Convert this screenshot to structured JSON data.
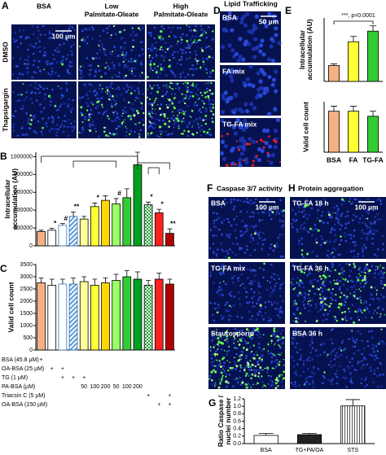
{
  "figure": {
    "panel_a": {
      "letter": "A",
      "columns": [
        [
          "BSA"
        ],
        [
          "Low",
          "Palmitate-Oleate"
        ],
        [
          "High",
          "Palmitate-Oleate"
        ]
      ],
      "rows": [
        "DMSO",
        "Thapsigargin"
      ],
      "scale": "100 µm"
    },
    "panel_d": {
      "letter": "D",
      "title": "Lipid Trafficking",
      "labels": [
        "BSA",
        "FA mix",
        "TG-FA mix"
      ],
      "scale": "50 µm"
    },
    "panel_e": {
      "letter": "E"
    },
    "panel_f": {
      "letter": "F",
      "title": "Caspase 3/7 activity",
      "labels": [
        "BSA",
        "TG-FA mix",
        "Staurosporin"
      ],
      "scale": "100 µm"
    },
    "panel_h": {
      "letter": "H",
      "title": "Protein aggregation",
      "labels": [
        "TG-FA 18 h",
        "TG-FA 36 h",
        "BSA 36 h"
      ],
      "scale": "100 µm"
    },
    "table": {
      "rows": [
        {
          "label": "BSA (45.8 µM)",
          "cells": [
            "+",
            null,
            null,
            null,
            null,
            null,
            null,
            null,
            null,
            null,
            null,
            null,
            null
          ]
        },
        {
          "label": "OA-BSA (25 µM)",
          "cells": [
            null,
            "+",
            "+",
            null,
            null,
            null,
            null,
            null,
            null,
            null,
            null,
            null,
            null
          ]
        },
        {
          "label": "TG (1 µM)",
          "cells": [
            null,
            null,
            "+",
            "+",
            "+",
            null,
            null,
            null,
            null,
            null,
            null,
            null,
            null
          ]
        },
        {
          "label": "PA-BSA (µM)",
          "cells": [
            null,
            null,
            null,
            null,
            "50",
            "100",
            "200",
            "50",
            "100",
            "200",
            null,
            null,
            null
          ]
        },
        {
          "label": "Triacsin C (5 µM)",
          "cells": [
            null,
            null,
            null,
            null,
            null,
            null,
            null,
            null,
            null,
            null,
            "+",
            null,
            "+"
          ]
        },
        {
          "label": "OA-BSA (150 µM)",
          "cells": [
            null,
            null,
            null,
            null,
            null,
            null,
            null,
            null,
            null,
            null,
            null,
            "+",
            "+"
          ]
        }
      ]
    }
  },
  "chart_data": [
    {
      "type": "bar",
      "letter": "B",
      "ylabel": [
        "Intracellular",
        "accumulation (AU)"
      ],
      "values": [
        160000,
        175000,
        230000,
        330000,
        300000,
        440000,
        510000,
        470000,
        540000,
        910000,
        460000,
        370000,
        140000
      ],
      "errors": [
        15000,
        20000,
        20000,
        50000,
        30000,
        40000,
        50000,
        60000,
        100000,
        140000,
        30000,
        40000,
        50000
      ],
      "annotations": [
        null,
        "*",
        "#",
        "**",
        null,
        "*",
        null,
        "#",
        null,
        null,
        "*",
        "*",
        "**"
      ],
      "colors": [
        "#f4b183",
        "#ffffff",
        "#ffffff",
        "#9dc3e6",
        "#ffff99",
        "#ffff33",
        "#ffd700",
        "#99ff66",
        "#33cc33",
        "#00a020",
        "#33cc33",
        "#ff2020",
        "#b00000"
      ],
      "hatch": [
        null,
        null,
        null,
        "stripes",
        null,
        null,
        null,
        null,
        null,
        null,
        "checker",
        null,
        null
      ],
      "edge": [
        "#000000",
        "#000000",
        "#2e75b6",
        "#2e75b6",
        "#000000",
        "#000000",
        "#000000",
        "#000000",
        "#000000",
        "#000000",
        "#000000",
        "#000000",
        "#000000"
      ],
      "ylim": [
        0,
        1050000
      ],
      "yticks": [
        0,
        200000,
        400000,
        600000,
        800000,
        1000000
      ]
    },
    {
      "type": "bar",
      "letter": "C",
      "ylabel": [
        "Valid cell count"
      ],
      "values": [
        2750,
        2650,
        2700,
        2700,
        2800,
        2650,
        2750,
        2850,
        3000,
        2900,
        2650,
        2900,
        2700
      ],
      "errors": [
        200,
        250,
        200,
        250,
        200,
        250,
        200,
        250,
        250,
        300,
        200,
        250,
        200
      ],
      "colors": [
        "#f4b183",
        "#ffffff",
        "#ffffff",
        "#9dc3e6",
        "#ffff99",
        "#ffff33",
        "#ffd700",
        "#99ff66",
        "#33cc33",
        "#00a020",
        "#33cc33",
        "#ff2020",
        "#b00000"
      ],
      "hatch": [
        null,
        null,
        null,
        "stripes",
        null,
        null,
        null,
        null,
        null,
        null,
        "checker",
        null,
        null
      ],
      "edge": [
        "#000000",
        "#000000",
        "#2e75b6",
        "#2e75b6",
        "#000000",
        "#000000",
        "#000000",
        "#000000",
        "#000000",
        "#000000",
        "#000000",
        "#000000",
        "#000000"
      ],
      "ylim": [
        0,
        3500
      ],
      "yticks": [
        0,
        500,
        1000,
        1500,
        2000,
        2500,
        3000,
        3500
      ]
    },
    {
      "type": "bar",
      "ylabel": [
        "Intracellular",
        "accumulation (AU)"
      ],
      "annotation": "***, p=0.0001",
      "values": [
        0.3,
        0.75,
        0.95
      ],
      "errors": [
        0.03,
        0.1,
        0.1
      ],
      "colors": [
        "#f4b183",
        "#ffff33",
        "#33cc33"
      ],
      "ylim": [
        0,
        1.2
      ]
    },
    {
      "type": "bar",
      "ylabel": [
        "Valid cell count"
      ],
      "categories": [
        "BSA",
        "FA",
        "TG-FA"
      ],
      "values": [
        6500,
        6500,
        5700
      ],
      "errors": [
        800,
        800,
        800
      ],
      "colors": [
        "#f4b183",
        "#ffff33",
        "#33cc33"
      ],
      "ylim": [
        0,
        8000
      ]
    },
    {
      "type": "bar",
      "letter": "G",
      "ylabel": [
        "Ratio Caspase /",
        "nuclei number"
      ],
      "categories": [
        "BSA",
        "TG+PA/OA",
        "STS"
      ],
      "values": [
        0.22,
        0.24,
        1.01
      ],
      "errors": [
        0.05,
        0.03,
        0.17
      ],
      "colors": [
        "#ffffff",
        "#222222",
        "#ffffff"
      ],
      "hatch": [
        null,
        null,
        "lines"
      ],
      "ylim": [
        0,
        1.2
      ],
      "yticks": [
        {
          "value": 0,
          "label": "0.0"
        },
        0.2,
        0.4,
        0.6,
        0.8,
        {
          "value": 1,
          "label": "1.0"
        },
        1.2
      ]
    }
  ]
}
